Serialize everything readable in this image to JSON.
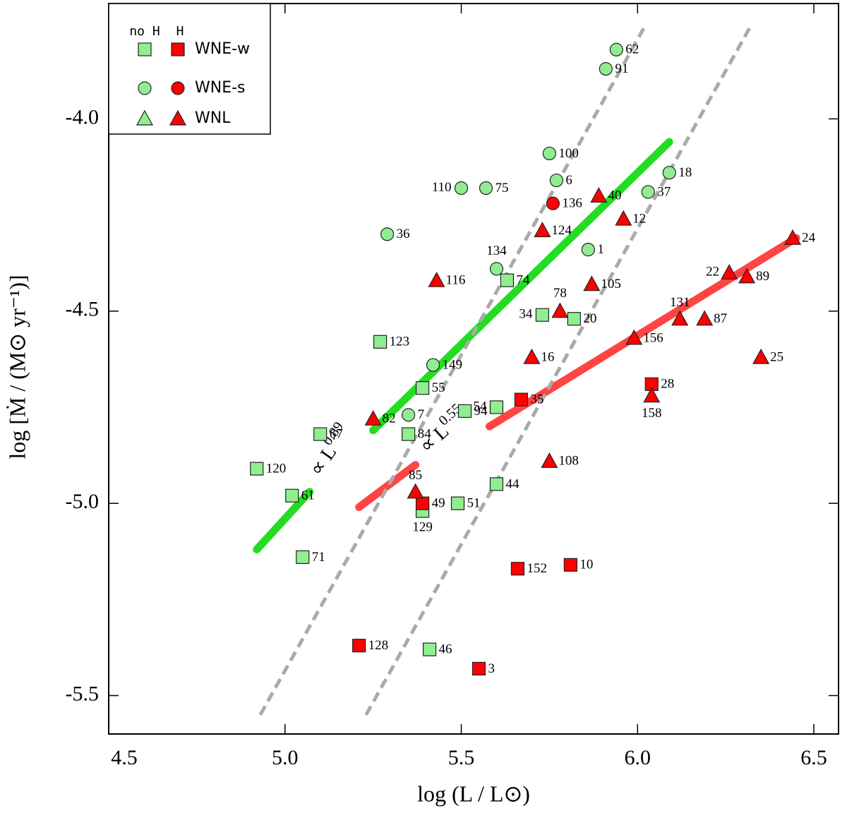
{
  "chart_data": {
    "type": "scatter",
    "x_label": "log (L / L⊙)",
    "y_label": "log [Ṁ / (M⊙ yr⁻¹)]",
    "xlim": [
      4.5,
      6.57
    ],
    "ylim": [
      -5.6,
      -3.7
    ],
    "xticks": [
      4.5,
      {
        "value": 5,
        "label": "5.0"
      },
      5.5,
      {
        "value": 6,
        "label": "6.0"
      },
      6.5
    ],
    "yticks": [
      {
        "value": -4,
        "label": "-4.0"
      },
      -4.5,
      {
        "value": -5,
        "label": "-5.0"
      },
      -5.5
    ],
    "legend_position": "upper left",
    "legend_columns": [
      "no H",
      "H"
    ],
    "series": [
      {
        "name": "WNE-w",
        "marker": "square",
        "groups": [
          {
            "color": "#90ee90",
            "x": [
              5.63,
              5.73,
              5.82,
              5.27,
              5.39,
              5.51,
              5.6,
              5.35,
              5.1,
              4.92,
              5.02,
              5.6,
              5.49,
              5.39,
              5.05,
              5.41
            ],
            "y": [
              -4.42,
              -4.51,
              -4.52,
              -4.58,
              -4.7,
              -4.76,
              -4.75,
              -4.82,
              -4.82,
              -4.91,
              -4.98,
              -4.95,
              -5.0,
              -5.02,
              -5.14,
              -5.38
            ],
            "labels": [
              "74",
              "34",
              "20",
              "123",
              "55",
              "94",
              "54",
              "84",
              "67",
              "120",
              "61",
              "44",
              "51",
              "129",
              "71",
              "46"
            ]
          },
          {
            "color": "#ff0000",
            "x": [
              5.67,
              6.04,
              5.39,
              5.66,
              5.81,
              5.21,
              5.55
            ],
            "y": [
              -4.73,
              -4.69,
              -5.0,
              -5.17,
              -5.16,
              -5.37,
              -5.43
            ],
            "labels": [
              "35",
              "28",
              "49",
              "152",
              "10",
              "128",
              "3"
            ]
          }
        ]
      },
      {
        "name": "WNE-s",
        "marker": "circle",
        "groups": [
          {
            "color": "#90ee90",
            "x": [
              5.94,
              5.91,
              5.75,
              5.77,
              6.09,
              5.5,
              5.57,
              6.03,
              5.29,
              5.86,
              5.6,
              5.42,
              5.35
            ],
            "y": [
              -3.82,
              -3.87,
              -4.09,
              -4.16,
              -4.14,
              -4.18,
              -4.18,
              -4.19,
              -4.3,
              -4.34,
              -4.39,
              -4.64,
              -4.77
            ],
            "labels": [
              "62",
              "91",
              "100",
              "6",
              "18",
              "110",
              "75",
              "37",
              "36",
              "1",
              "134",
              "149",
              "7"
            ]
          },
          {
            "color": "#ff0000",
            "x": [
              5.76
            ],
            "y": [
              -4.22
            ],
            "labels": [
              "136"
            ]
          }
        ]
      },
      {
        "name": "WNL",
        "marker": "triangle",
        "groups": [
          {
            "color": "#90ee90",
            "x": [],
            "y": [],
            "labels": []
          },
          {
            "color": "#ff0000",
            "x": [
              5.89,
              5.96,
              5.73,
              6.44,
              6.26,
              6.31,
              5.43,
              5.87,
              5.78,
              6.12,
              6.19,
              5.99,
              5.7,
              6.35,
              6.04,
              5.25,
              5.75,
              5.37
            ],
            "y": [
              -4.2,
              -4.26,
              -4.29,
              -4.31,
              -4.4,
              -4.41,
              -4.42,
              -4.43,
              -4.5,
              -4.52,
              -4.52,
              -4.57,
              -4.62,
              -4.62,
              -4.72,
              -4.78,
              -4.89,
              -4.97
            ],
            "labels": [
              "40",
              "12",
              "124",
              "24",
              "22",
              "89",
              "116",
              "105",
              "78",
              "131",
              "87",
              "156",
              "16",
              "25",
              "158",
              "82",
              "108",
              "85"
            ]
          }
        ]
      }
    ],
    "lines": [
      {
        "color": "#22dd22",
        "style": "solid",
        "x": [
          4.92,
          5.07,
          null,
          5.25,
          6.09
        ],
        "y": [
          -5.12,
          -4.97,
          null,
          -4.81,
          -4.06
        ]
      },
      {
        "color": "#ff4444",
        "style": "solid",
        "x": [
          5.21,
          5.37,
          null,
          5.58,
          6.45
        ],
        "y": [
          -5.01,
          -4.9,
          null,
          -4.8,
          -4.31
        ]
      },
      {
        "color": "#aaaaaa",
        "style": "dashed",
        "x": [
          4.93,
          6.02
        ],
        "y": [
          -5.55,
          -3.76
        ]
      },
      {
        "color": "#aaaaaa",
        "style": "dashed",
        "x": [
          5.23,
          6.32
        ],
        "y": [
          -5.55,
          -3.76
        ]
      }
    ],
    "annotations": [
      {
        "text": "∝ L",
        "sup": "0.89"
      },
      {
        "text": "∝ L",
        "sup": "0.55"
      }
    ]
  }
}
